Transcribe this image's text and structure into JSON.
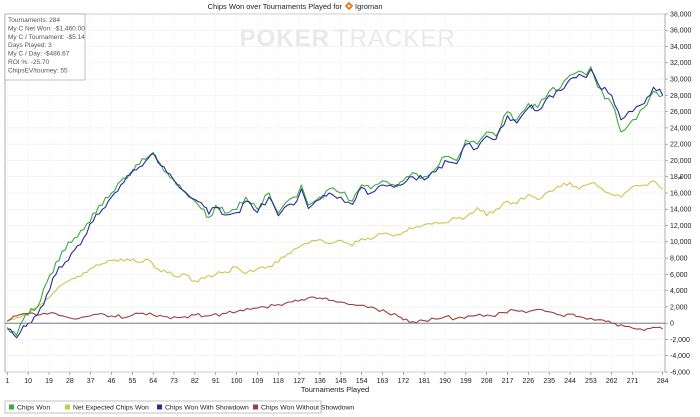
{
  "chart_data": {
    "type": "line",
    "title_prefix": "Chips Won over Tournaments Played for",
    "player": "Igroman",
    "watermark_left": "POKER",
    "watermark_right": "TRACKER",
    "xlabel": "Tournaments Played",
    "ylabel": "",
    "xlim": [
      0,
      285
    ],
    "ylim": [
      -6000,
      38000
    ],
    "x_ticks": [
      "1",
      "10",
      "19",
      "28",
      "37",
      "46",
      "55",
      "64",
      "73",
      "82",
      "91",
      "100",
      "109",
      "118",
      "127",
      "136",
      "145",
      "154",
      "163",
      "172",
      "181",
      "190",
      "199",
      "208",
      "217",
      "226",
      "235",
      "244",
      "253",
      "262",
      "271",
      "284"
    ],
    "y_ticks": [
      "-6,000",
      "-4,000",
      "-2,000",
      "0",
      "2,000",
      "4,000",
      "6,000",
      "8,000",
      "10,000",
      "12,000",
      "14,000",
      "16,000",
      "18,000",
      "20,000",
      "22,000",
      "24,000",
      "26,000",
      "28,000",
      "30,000",
      "32,000",
      "34,000",
      "36,000",
      "38,000"
    ],
    "grid": true,
    "legend_position": "bottom",
    "stats": [
      "Tournaments: 284",
      "My C Net Won: -$1,460.00",
      "My C / Tournament: -$5.14",
      "Days Played: 3",
      "My C / Day: -$486.67",
      "ROI %: -25.70",
      "ChipsEV/tourney: 55"
    ],
    "series": [
      {
        "name": "Chips Won",
        "color": "#3daa3d",
        "x": [
          1,
          5,
          8,
          10,
          14,
          18,
          22,
          26,
          30,
          34,
          38,
          42,
          46,
          50,
          54,
          58,
          62,
          64,
          66,
          70,
          74,
          78,
          82,
          86,
          88,
          91,
          95,
          100,
          104,
          109,
          114,
          118,
          122,
          126,
          128,
          131,
          136,
          140,
          145,
          150,
          154,
          158,
          163,
          168,
          172,
          176,
          181,
          186,
          190,
          195,
          199,
          204,
          208,
          212,
          217,
          221,
          226,
          230,
          235,
          240,
          244,
          248,
          251,
          253,
          256,
          262,
          266,
          271,
          276,
          280,
          284
        ],
        "y": [
          -500,
          -1500,
          500,
          1000,
          2000,
          5000,
          7500,
          9000,
          10500,
          11500,
          13500,
          14500,
          16000,
          17500,
          18500,
          19500,
          20500,
          21000,
          20000,
          18500,
          17000,
          16000,
          15000,
          14000,
          13000,
          14500,
          13500,
          14000,
          15500,
          14000,
          16000,
          13500,
          15000,
          15500,
          17000,
          14500,
          15500,
          16500,
          16000,
          15000,
          17000,
          16500,
          17500,
          17000,
          17500,
          18500,
          18000,
          19000,
          20500,
          20000,
          22500,
          22000,
          23500,
          23000,
          26000,
          25000,
          27000,
          26500,
          28500,
          29000,
          30500,
          31000,
          30500,
          31500,
          29000,
          27000,
          23500,
          25000,
          26500,
          28500,
          28000
        ]
      },
      {
        "name": "Net Expected Chips Won",
        "color": "#c8c850",
        "x": [
          1,
          5,
          8,
          10,
          14,
          18,
          22,
          26,
          30,
          34,
          38,
          42,
          46,
          50,
          54,
          58,
          62,
          66,
          70,
          74,
          78,
          82,
          86,
          91,
          95,
          100,
          104,
          109,
          114,
          118,
          122,
          126,
          131,
          136,
          140,
          145,
          150,
          154,
          158,
          163,
          168,
          172,
          176,
          181,
          186,
          190,
          195,
          199,
          204,
          208,
          212,
          217,
          221,
          226,
          230,
          235,
          240,
          244,
          248,
          253,
          256,
          262,
          266,
          271,
          276,
          280,
          284
        ],
        "y": [
          200,
          700,
          1000,
          1200,
          2000,
          3000,
          4000,
          5000,
          5500,
          6200,
          6800,
          7300,
          7700,
          7900,
          7700,
          7500,
          7800,
          6700,
          6200,
          5700,
          6000,
          5200,
          5500,
          6000,
          6300,
          6900,
          6100,
          6700,
          7000,
          7500,
          8500,
          9200,
          9800,
          10300,
          9800,
          10200,
          9500,
          10400,
          10300,
          11000,
          10700,
          11200,
          11600,
          12100,
          12400,
          12300,
          12900,
          13000,
          14200,
          13200,
          14000,
          15000,
          14700,
          15800,
          15200,
          16200,
          16800,
          17300,
          16500,
          17200,
          16800,
          15800,
          15500,
          16800,
          17000,
          17500,
          16500
        ]
      },
      {
        "name": "Chips Won With Showdown",
        "color": "#2a2aa0",
        "x": [
          1,
          5,
          8,
          10,
          14,
          18,
          22,
          26,
          30,
          34,
          38,
          42,
          46,
          50,
          54,
          58,
          62,
          64,
          66,
          70,
          74,
          78,
          82,
          86,
          88,
          91,
          95,
          100,
          104,
          109,
          114,
          118,
          122,
          126,
          128,
          131,
          136,
          140,
          145,
          150,
          154,
          158,
          163,
          168,
          172,
          176,
          181,
          186,
          190,
          195,
          199,
          204,
          208,
          212,
          217,
          221,
          226,
          230,
          235,
          240,
          244,
          248,
          251,
          253,
          256,
          262,
          266,
          271,
          276,
          280,
          284
        ],
        "y": [
          -700,
          -1800,
          -300,
          0,
          1000,
          3500,
          6000,
          7500,
          9000,
          10500,
          12500,
          14000,
          15500,
          17000,
          18200,
          19200,
          20300,
          20800,
          19800,
          18500,
          17200,
          16100,
          15200,
          14300,
          13400,
          14200,
          13300,
          13600,
          15000,
          13600,
          15500,
          13200,
          14500,
          15000,
          16500,
          14100,
          15200,
          16000,
          15500,
          14600,
          16700,
          16000,
          17000,
          16700,
          17100,
          18000,
          17600,
          18600,
          20000,
          19600,
          22000,
          21500,
          23000,
          22600,
          25500,
          24600,
          26500,
          26100,
          28000,
          28600,
          30000,
          30600,
          30200,
          31200,
          29500,
          28000,
          25000,
          26000,
          27000,
          29000,
          28000
        ]
      },
      {
        "name": "Chips Won Without Showdown",
        "color": "#a03c3c",
        "x": [
          1,
          5,
          10,
          15,
          20,
          25,
          30,
          35,
          40,
          46,
          52,
          58,
          64,
          70,
          76,
          82,
          88,
          94,
          100,
          106,
          112,
          118,
          124,
          128,
          132,
          136,
          140,
          145,
          150,
          155,
          160,
          165,
          170,
          172,
          176,
          181,
          186,
          190,
          195,
          200,
          205,
          210,
          215,
          220,
          225,
          230,
          235,
          240,
          244,
          248,
          253,
          258,
          262,
          266,
          271,
          276,
          280,
          284
        ],
        "y": [
          300,
          900,
          1200,
          1000,
          1300,
          900,
          500,
          800,
          1100,
          900,
          700,
          1200,
          1000,
          800,
          700,
          1000,
          900,
          1200,
          1400,
          1700,
          2000,
          2300,
          2600,
          2900,
          3200,
          3100,
          2800,
          2600,
          2300,
          2200,
          1800,
          1300,
          800,
          400,
          200,
          300,
          500,
          800,
          600,
          900,
          1100,
          900,
          1300,
          1600,
          1300,
          1700,
          1400,
          1000,
          1100,
          800,
          600,
          400,
          0,
          -200,
          -600,
          -900,
          -500,
          -700
        ]
      }
    ]
  }
}
